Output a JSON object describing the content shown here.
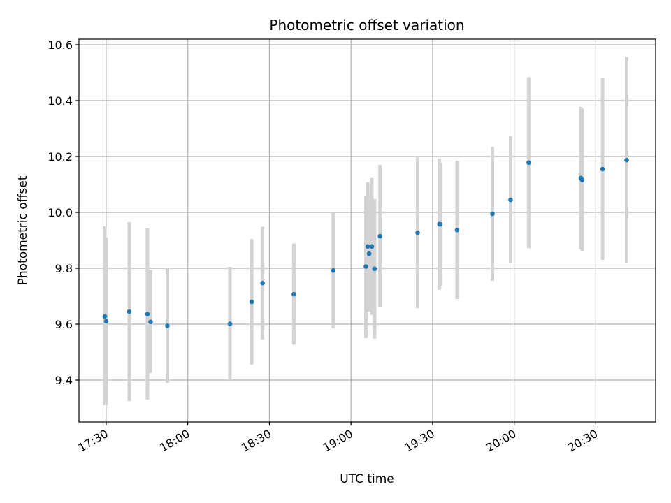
{
  "chart_data": {
    "type": "scatter",
    "title": "Photometric offset variation",
    "xlabel": "UTC time",
    "ylabel": "Photometric offset",
    "x_ticks": [
      "17:30",
      "18:00",
      "18:30",
      "19:00",
      "19:30",
      "20:00",
      "20:30"
    ],
    "y_ticks": [
      "9.4",
      "9.6",
      "9.8",
      "10.0",
      "10.2",
      "10.4",
      "10.6"
    ],
    "xlim": [
      "17:20",
      "20:52"
    ],
    "ylim": [
      9.25,
      10.62
    ],
    "grid": true,
    "colors": {
      "point": "#1f77b4",
      "errorbar": "#d3d3d3",
      "grid": "#b0b0b0"
    },
    "points": [
      {
        "x": "17:29:30",
        "y": 9.628,
        "err_low": 9.31,
        "err_high": 9.95
      },
      {
        "x": "17:30:00",
        "y": 9.61,
        "err_low": 9.31,
        "err_high": 9.91
      },
      {
        "x": "17:38:30",
        "y": 9.645,
        "err_low": 9.325,
        "err_high": 9.965
      },
      {
        "x": "17:45:10",
        "y": 9.636,
        "err_low": 9.33,
        "err_high": 9.943
      },
      {
        "x": "17:46:20",
        "y": 9.608,
        "err_low": 9.425,
        "err_high": 9.793
      },
      {
        "x": "17:52:30",
        "y": 9.594,
        "err_low": 9.39,
        "err_high": 9.8
      },
      {
        "x": "18:15:30",
        "y": 9.601,
        "err_low": 9.4,
        "err_high": 9.805
      },
      {
        "x": "18:23:30",
        "y": 9.68,
        "err_low": 9.455,
        "err_high": 9.905
      },
      {
        "x": "18:27:30",
        "y": 9.747,
        "err_low": 9.545,
        "err_high": 9.948
      },
      {
        "x": "18:39:00",
        "y": 9.707,
        "err_low": 9.527,
        "err_high": 9.888
      },
      {
        "x": "18:53:30",
        "y": 9.792,
        "err_low": 9.585,
        "err_high": 10.0
      },
      {
        "x": "19:05:30",
        "y": 9.806,
        "err_low": 9.55,
        "err_high": 10.06
      },
      {
        "x": "19:06:10",
        "y": 9.878,
        "err_low": 9.648,
        "err_high": 10.108
      },
      {
        "x": "19:06:40",
        "y": 9.852,
        "err_low": 9.645,
        "err_high": 10.062
      },
      {
        "x": "19:07:40",
        "y": 9.878,
        "err_low": 9.633,
        "err_high": 10.123
      },
      {
        "x": "19:08:40",
        "y": 9.798,
        "err_low": 9.548,
        "err_high": 10.048
      },
      {
        "x": "19:10:40",
        "y": 9.915,
        "err_low": 9.66,
        "err_high": 10.17
      },
      {
        "x": "19:24:30",
        "y": 9.927,
        "err_low": 9.657,
        "err_high": 10.197
      },
      {
        "x": "19:32:30",
        "y": 9.958,
        "err_low": 9.723,
        "err_high": 10.193
      },
      {
        "x": "19:32:50",
        "y": 9.957,
        "err_low": 9.737,
        "err_high": 10.177
      },
      {
        "x": "19:39:00",
        "y": 9.937,
        "err_low": 9.69,
        "err_high": 10.185
      },
      {
        "x": "19:52:00",
        "y": 9.995,
        "err_low": 9.755,
        "err_high": 10.235
      },
      {
        "x": "19:58:40",
        "y": 10.045,
        "err_low": 9.818,
        "err_high": 10.273
      },
      {
        "x": "20:05:20",
        "y": 10.178,
        "err_low": 9.872,
        "err_high": 10.484
      },
      {
        "x": "20:24:30",
        "y": 10.123,
        "err_low": 9.868,
        "err_high": 10.378
      },
      {
        "x": "20:25:00",
        "y": 10.116,
        "err_low": 9.86,
        "err_high": 10.372
      },
      {
        "x": "20:32:30",
        "y": 10.155,
        "err_low": 9.83,
        "err_high": 10.48
      },
      {
        "x": "20:41:20",
        "y": 10.187,
        "err_low": 9.82,
        "err_high": 10.556
      }
    ]
  }
}
